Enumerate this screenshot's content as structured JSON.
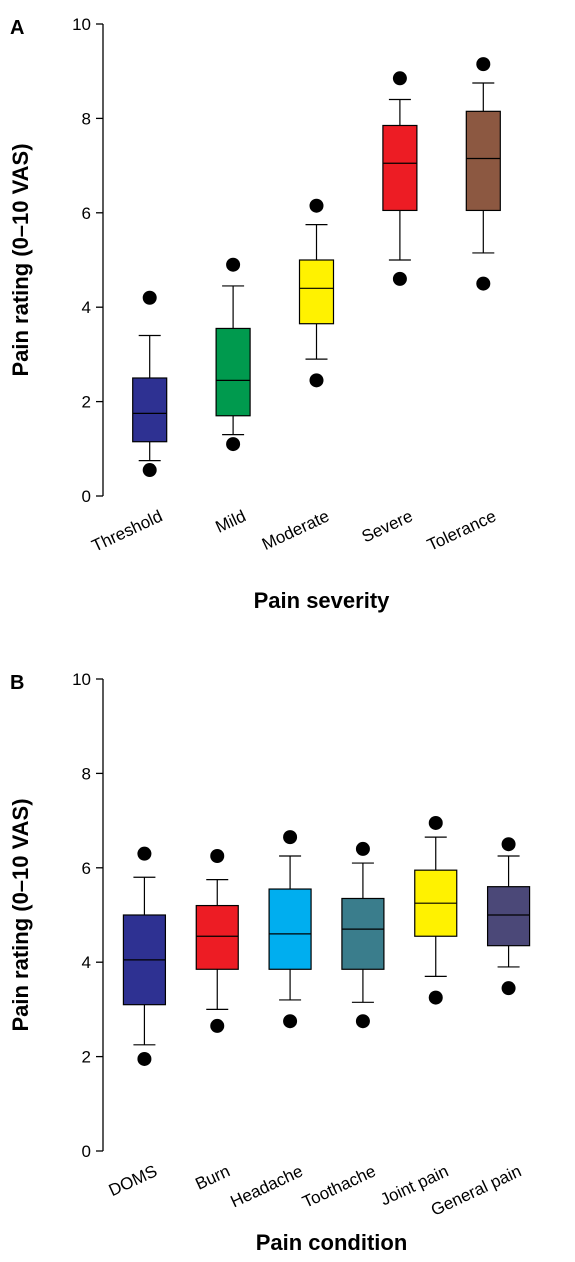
{
  "chart_data": [
    {
      "type": "box",
      "panel_label": "A",
      "xlabel": "Pain severity",
      "ylabel": "Pain rating (0–10 VAS)",
      "ylim": [
        0,
        10
      ],
      "yticks": [
        0,
        2,
        4,
        6,
        8,
        10
      ],
      "categories": [
        "Threshold",
        "Mild",
        "Moderate",
        "Severe",
        "Tolerance"
      ],
      "boxes": [
        {
          "color": "#2e3192",
          "whisker_low": 0.75,
          "q1": 1.15,
          "median": 1.75,
          "q3": 2.5,
          "whisker_high": 3.4,
          "outliers": [
            0.55,
            4.2
          ]
        },
        {
          "color": "#009a4e",
          "whisker_low": 1.3,
          "q1": 1.7,
          "median": 2.45,
          "q3": 3.55,
          "whisker_high": 4.45,
          "outliers": [
            1.1,
            4.9
          ]
        },
        {
          "color": "#fff200",
          "whisker_low": 2.9,
          "q1": 3.65,
          "median": 4.4,
          "q3": 5.0,
          "whisker_high": 5.75,
          "outliers": [
            2.45,
            6.15
          ]
        },
        {
          "color": "#ed1c24",
          "whisker_low": 5.0,
          "q1": 6.05,
          "median": 7.05,
          "q3": 7.85,
          "whisker_high": 8.4,
          "outliers": [
            4.6,
            8.85
          ]
        },
        {
          "color": "#8c5841",
          "whisker_low": 5.15,
          "q1": 6.05,
          "median": 7.15,
          "q3": 8.15,
          "whisker_high": 8.75,
          "outliers": [
            4.5,
            9.15
          ]
        }
      ]
    },
    {
      "type": "box",
      "panel_label": "B",
      "xlabel": "Pain condition",
      "ylabel": "Pain rating (0–10 VAS)",
      "ylim": [
        0,
        10
      ],
      "yticks": [
        0,
        2,
        4,
        6,
        8,
        10
      ],
      "categories": [
        "DOMS",
        "Burn",
        "Headache",
        "Toothache",
        "Joint pain",
        "General pain"
      ],
      "boxes": [
        {
          "color": "#2e3192",
          "whisker_low": 2.25,
          "q1": 3.1,
          "median": 4.05,
          "q3": 5.0,
          "whisker_high": 5.8,
          "outliers": [
            1.95,
            6.3
          ]
        },
        {
          "color": "#ed1c24",
          "whisker_low": 3.0,
          "q1": 3.85,
          "median": 4.55,
          "q3": 5.2,
          "whisker_high": 5.75,
          "outliers": [
            2.65,
            6.25
          ]
        },
        {
          "color": "#00aeef",
          "whisker_low": 3.2,
          "q1": 3.85,
          "median": 4.6,
          "q3": 5.55,
          "whisker_high": 6.25,
          "outliers": [
            2.75,
            6.65
          ]
        },
        {
          "color": "#3a7d8c",
          "whisker_low": 3.15,
          "q1": 3.85,
          "median": 4.7,
          "q3": 5.35,
          "whisker_high": 6.1,
          "outliers": [
            2.75,
            6.4
          ]
        },
        {
          "color": "#fff200",
          "whisker_low": 3.7,
          "q1": 4.55,
          "median": 5.25,
          "q3": 5.95,
          "whisker_high": 6.65,
          "outliers": [
            3.25,
            6.95
          ]
        },
        {
          "color": "#4b4878",
          "whisker_low": 3.9,
          "q1": 4.35,
          "median": 5.0,
          "q3": 5.6,
          "whisker_high": 6.25,
          "outliers": [
            3.45,
            6.5
          ]
        }
      ]
    }
  ]
}
